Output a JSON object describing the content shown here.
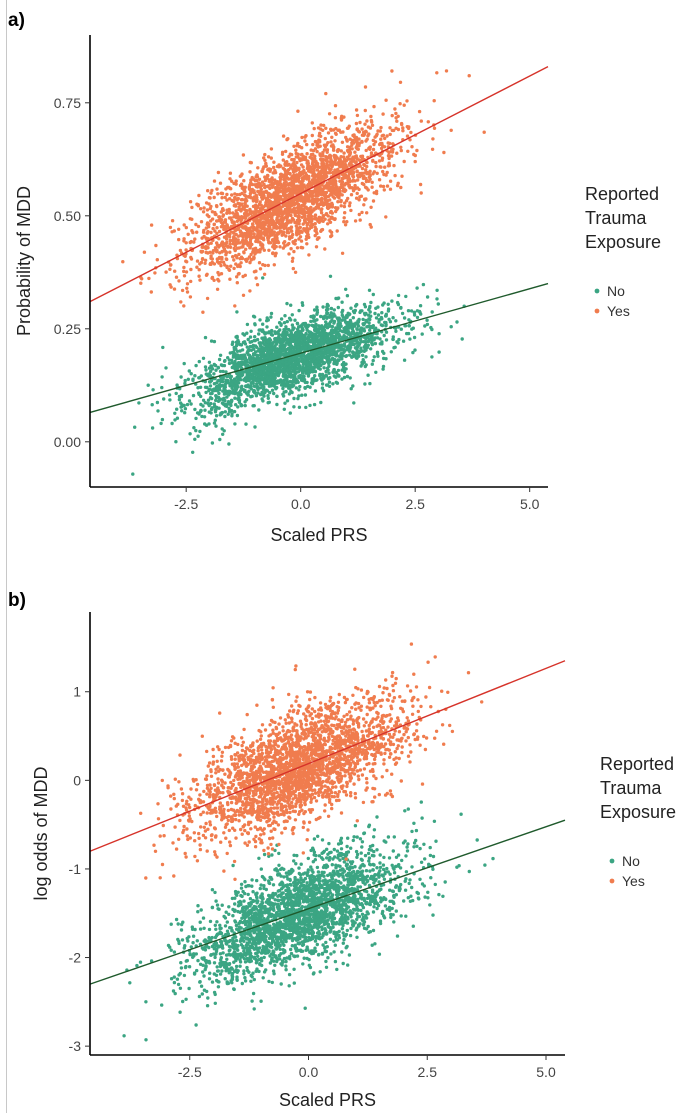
{
  "chart_data": [
    {
      "type": "scatter",
      "panel_label": "a)",
      "xlabel": "Scaled PRS",
      "ylabel": "Probability of MDD",
      "xlim": [
        -4.6,
        5.4
      ],
      "ylim": [
        -0.1,
        0.9
      ],
      "xticks": [
        "-2.5",
        "0.0",
        "2.5",
        "5.0"
      ],
      "xtick_values": [
        -2.5,
        0.0,
        2.5,
        5.0
      ],
      "yticks": [
        "0.00",
        "0.25",
        "0.50",
        "0.75"
      ],
      "ytick_values": [
        0.0,
        0.25,
        0.5,
        0.75
      ],
      "legend": {
        "title": [
          "Reported",
          "Trauma",
          "Exposure"
        ],
        "placement": "right"
      },
      "series": [
        {
          "name": "No",
          "color": "#3ba583",
          "fitline_color": "#1f5a2c",
          "fit": {
            "x": [
              -4.6,
              5.4
            ],
            "y": [
              0.065,
              0.35
            ]
          },
          "cloud": {
            "x_center": -0.2,
            "x_sd": 1.1,
            "x_range": [
              -3.9,
              4.6
            ],
            "band_sd": 0.04,
            "band_extra_low": -0.05
          }
        },
        {
          "name": "Yes",
          "color": "#f07c4e",
          "fitline_color": "#d6332a",
          "fit": {
            "x": [
              -4.6,
              5.4
            ],
            "y": [
              0.31,
              0.83
            ]
          },
          "cloud": {
            "x_center": -0.2,
            "x_sd": 1.1,
            "x_range": [
              -3.9,
              4.6
            ],
            "band_sd": 0.055,
            "band_extra_low": 0.0
          }
        }
      ]
    },
    {
      "type": "scatter",
      "panel_label": "b)",
      "xlabel": "Scaled PRS",
      "ylabel": "log odds of MDD",
      "xlim": [
        -4.6,
        5.4
      ],
      "ylim": [
        -3.1,
        1.9
      ],
      "xticks": [
        "-2.5",
        "0.0",
        "2.5",
        "5.0"
      ],
      "xtick_values": [
        -2.5,
        0.0,
        2.5,
        5.0
      ],
      "yticks": [
        "-3",
        "-2",
        "-1",
        "0",
        "1"
      ],
      "ytick_values": [
        -3,
        -2,
        -1,
        0,
        1
      ],
      "legend": {
        "title": [
          "Reported",
          "Trauma",
          "Exposure"
        ],
        "placement": "right"
      },
      "series": [
        {
          "name": "No",
          "color": "#3ba583",
          "fitline_color": "#1f5a2c",
          "fit": {
            "x": [
              -4.6,
              5.4
            ],
            "y": [
              -2.3,
              -0.45
            ]
          },
          "cloud": {
            "x_center": -0.2,
            "x_sd": 1.1,
            "x_range": [
              -3.9,
              4.6
            ],
            "band_sd": 0.28,
            "band_extra_low": -0.25
          }
        },
        {
          "name": "Yes",
          "color": "#f07c4e",
          "fitline_color": "#d6332a",
          "fit": {
            "x": [
              -4.6,
              5.4
            ],
            "y": [
              -0.8,
              1.35
            ]
          },
          "cloud": {
            "x_center": -0.2,
            "x_sd": 1.1,
            "x_range": [
              -3.9,
              4.6
            ],
            "band_sd": 0.3,
            "band_extra_low": 0.0
          }
        }
      ]
    }
  ]
}
